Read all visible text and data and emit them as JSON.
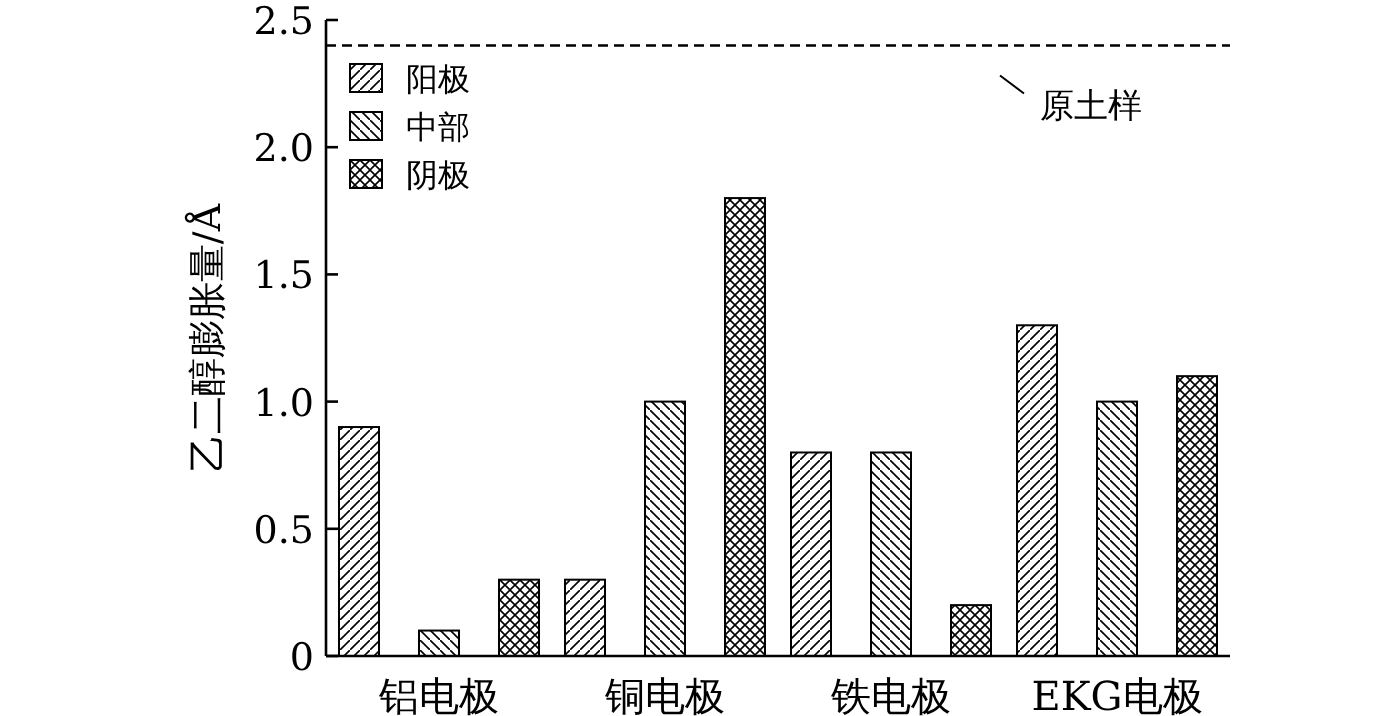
{
  "chart_data": {
    "type": "bar",
    "ylabel": "乙二醇膨胀量/Å",
    "categories": [
      "铝电极",
      "铜电极",
      "铁电极",
      "EKG电极"
    ],
    "series": [
      {
        "name": "阳极",
        "color": "#000000",
        "values": [
          0.9,
          0.3,
          0.8,
          1.3
        ]
      },
      {
        "name": "中部",
        "color": "#000000",
        "values": [
          0.1,
          1.0,
          0.8,
          1.0
        ]
      },
      {
        "name": "阴极",
        "color": "#000000",
        "values": [
          0.3,
          1.8,
          0.2,
          1.1
        ]
      }
    ],
    "ylim": [
      0,
      2.5
    ],
    "yticks": [
      {
        "value": 0,
        "label": "0"
      },
      {
        "value": 0.5,
        "label": "0.5"
      },
      {
        "value": 1,
        "label": "1.0"
      },
      {
        "value": 1.5,
        "label": "1.5"
      },
      {
        "value": 2,
        "label": "2.0"
      },
      {
        "value": 2.5,
        "label": "2.5"
      }
    ],
    "ref_lines": [
      {
        "axis": "y",
        "value": 2.4,
        "label": "原土样",
        "line_style": "dashed",
        "color": "#000000"
      }
    ],
    "legend": "top left",
    "grid": false
  }
}
